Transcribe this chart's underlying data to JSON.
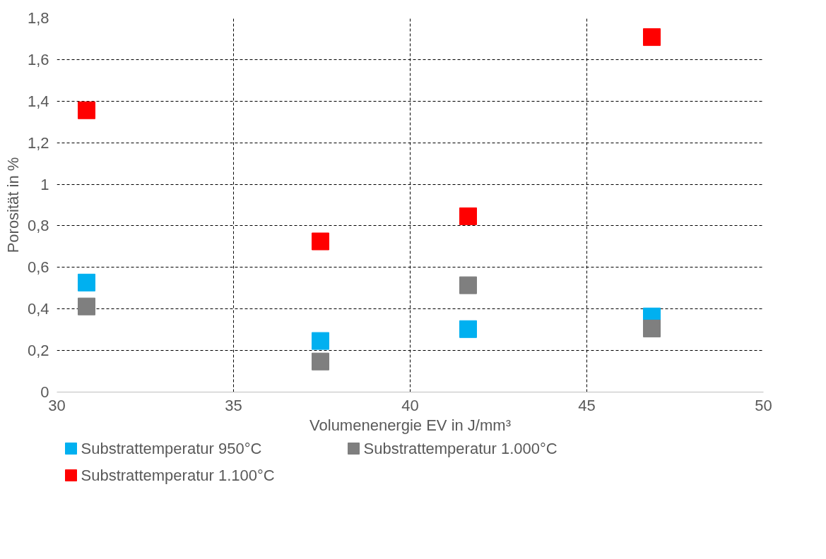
{
  "chart_data": {
    "type": "scatter",
    "xlabel": "Volumenenergie EV in J/mm³",
    "ylabel": "Porosität in %",
    "xlim": [
      30,
      50
    ],
    "xticks": [
      30,
      35,
      40,
      45,
      50
    ],
    "ylim": [
      0,
      1.8
    ],
    "yticks": [
      0,
      {
        "value": 0.2,
        "label": "0,2"
      },
      {
        "value": 0.4,
        "label": "0,4"
      },
      {
        "value": 0.6,
        "label": "0,6"
      },
      {
        "value": 0.8,
        "label": "0,8"
      },
      1,
      {
        "value": 1.2,
        "label": "1,2"
      },
      {
        "value": 1.4,
        "label": "1,4"
      },
      {
        "value": 1.6,
        "label": "1,6"
      },
      {
        "value": 1.8,
        "label": "1,8"
      }
    ],
    "x": [
      30.84,
      37.46,
      41.64,
      46.84
    ],
    "series": [
      {
        "name": "Substrattemperatur 950°C",
        "color": "#00b0f0",
        "values": [
          0.527,
          0.246,
          0.303,
          0.364
        ]
      },
      {
        "name": "Substrattemperatur 1.000°C",
        "color": "#7f7f7f",
        "values": [
          0.412,
          0.147,
          0.514,
          0.306
        ]
      },
      {
        "name": "Substrattemperatur 1.100°C",
        "color": "#ff0000",
        "values": [
          1.356,
          0.725,
          0.846,
          1.708
        ]
      }
    ],
    "marker": "square",
    "grid": true,
    "legend": "bottom"
  }
}
